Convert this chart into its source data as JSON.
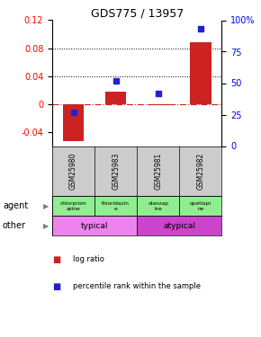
{
  "title": "GDS775 / 13957",
  "samples": [
    "GSM25980",
    "GSM25983",
    "GSM25981",
    "GSM25982"
  ],
  "log_ratios": [
    -0.053,
    0.018,
    -0.002,
    0.088
  ],
  "percentile_ranks": [
    27,
    52,
    42,
    93
  ],
  "agents": [
    "chlorprom\nazine",
    "thioridazin\ne",
    "olanzap\nine",
    "quetiapi\nne"
  ],
  "agent_color": "#90ee90",
  "other_colors": [
    "#ee82ee",
    "#ee82ee",
    "#cc44cc",
    "#cc44cc"
  ],
  "ylim_left": [
    -0.06,
    0.12
  ],
  "ylim_right": [
    0,
    100
  ],
  "yticks_left": [
    -0.04,
    0.0,
    0.04,
    0.08,
    0.12
  ],
  "yticks_right": [
    0,
    25,
    50,
    75,
    100
  ],
  "ytick_labels_left": [
    "-0.04",
    "0",
    "0.04",
    "0.08",
    "0.12"
  ],
  "ytick_labels_right": [
    "0",
    "25",
    "50",
    "75",
    "100%"
  ],
  "bar_color": "#cc2222",
  "dot_color": "#2222cc",
  "zero_line_color": "#cc2222",
  "bg_color": "#ffffff",
  "sample_bg": "#cccccc",
  "typical_color": "#ee82ee",
  "atypical_color": "#cc44cc"
}
